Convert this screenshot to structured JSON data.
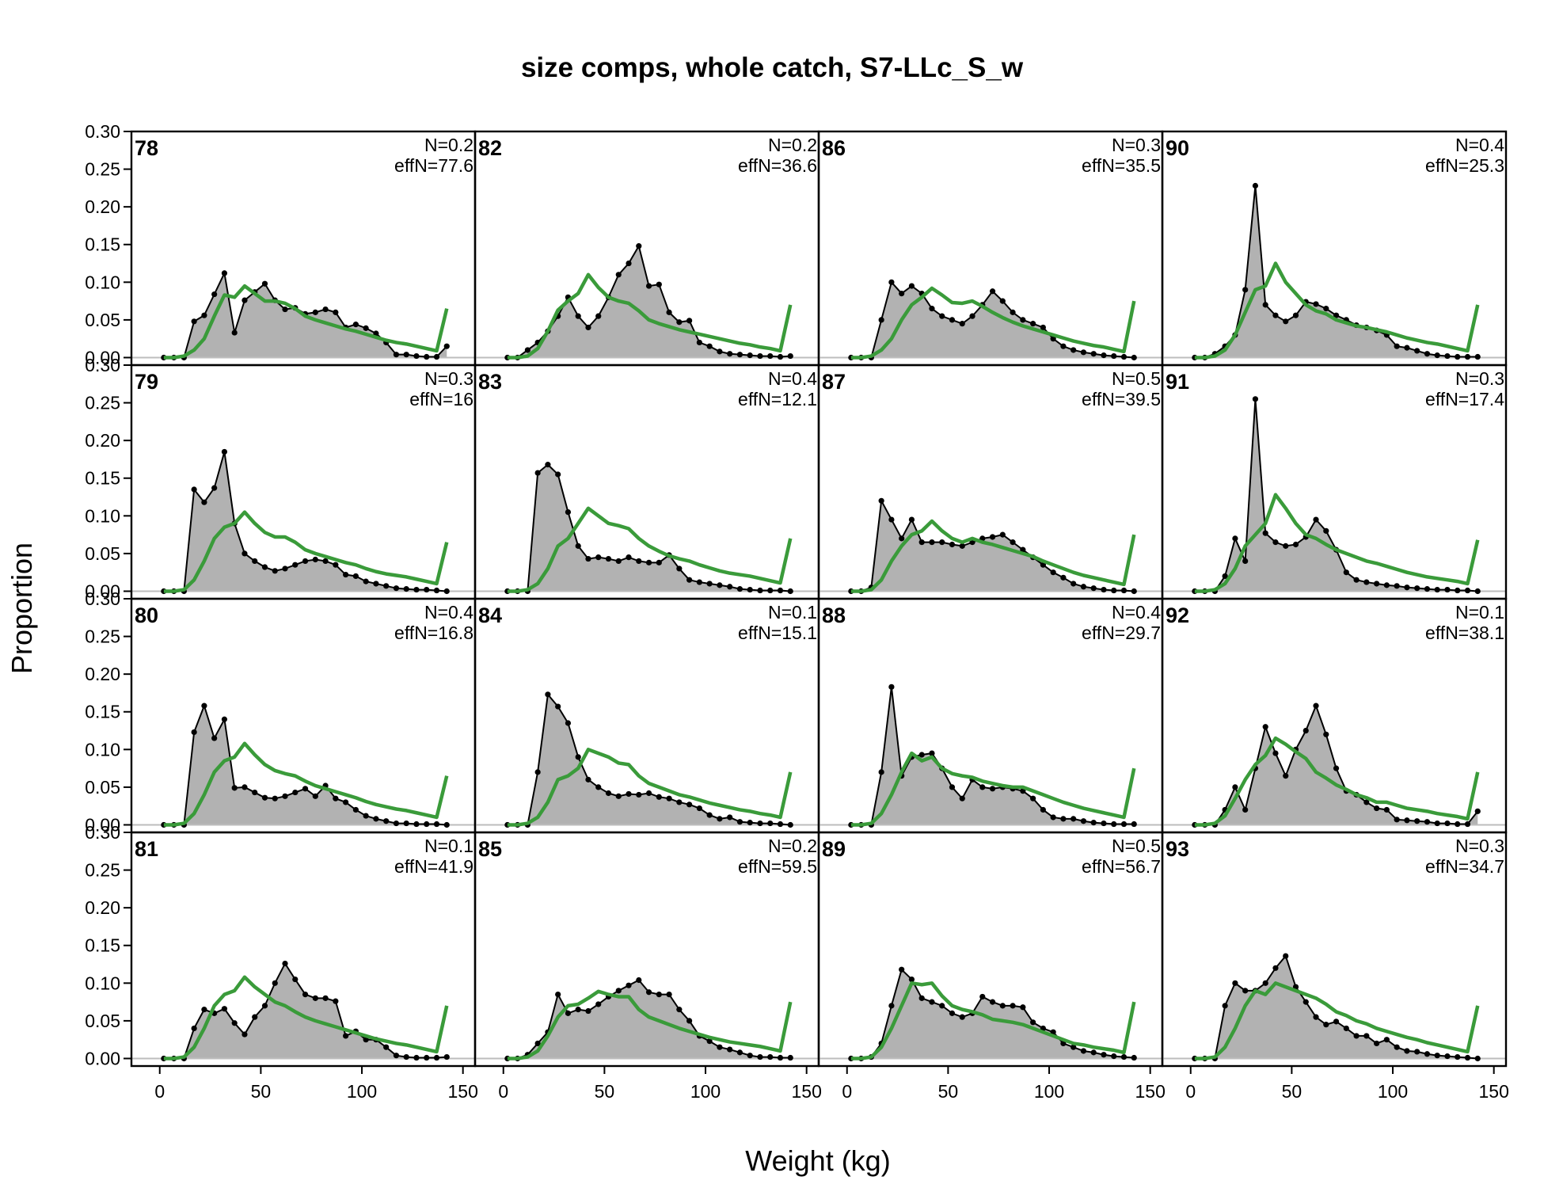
{
  "chart_data": {
    "type": "area",
    "title": "size comps, whole catch, S7-LLc_S_w",
    "xlabel": "Weight (kg)",
    "ylabel": "Proportion",
    "xlim": [
      -14,
      156
    ],
    "ylim": [
      -0.01,
      0.3
    ],
    "x_ticks": [
      0,
      50,
      100,
      150
    ],
    "y_ticks": [
      "0.00",
      "0.05",
      "0.10",
      "0.15",
      "0.20",
      "0.25",
      "0.30"
    ],
    "observed_color": "#000000",
    "observed_fill": "#b2b2b2",
    "expected_color": "#3a9b3a",
    "layout": "4 rows x 4 columns, filled down columns",
    "series_names": [
      "observed",
      "expected"
    ],
    "bins": [
      2,
      7,
      12,
      17,
      22,
      27,
      32,
      37,
      42,
      47,
      52,
      57,
      62,
      67,
      72,
      77,
      82,
      87,
      92,
      97,
      102,
      107,
      112,
      117,
      122,
      127,
      132,
      137,
      142
    ],
    "panels": [
      {
        "label": "78",
        "n": "N=0.2",
        "effn": "effN=77.6",
        "observed": [
          0,
          0,
          0,
          0.048,
          0.056,
          0.084,
          0.112,
          0.033,
          0.076,
          0.087,
          0.098,
          0.076,
          0.064,
          0.066,
          0.058,
          0.06,
          0.064,
          0.06,
          0.04,
          0.044,
          0.039,
          0.032,
          0.02,
          0.004,
          0.004,
          0.002,
          0.001,
          0.001,
          0.015
        ],
        "expected": [
          0,
          0,
          0.002,
          0.01,
          0.025,
          0.055,
          0.083,
          0.08,
          0.095,
          0.085,
          0.075,
          0.075,
          0.072,
          0.065,
          0.055,
          0.05,
          0.046,
          0.042,
          0.038,
          0.035,
          0.031,
          0.027,
          0.023,
          0.02,
          0.018,
          0.015,
          0.012,
          0.009,
          0.065
        ]
      },
      {
        "label": "79",
        "n": "N=0.3",
        "effn": "effN=16",
        "observed": [
          0,
          0,
          0,
          0.135,
          0.118,
          0.137,
          0.185,
          0.09,
          0.05,
          0.04,
          0.032,
          0.027,
          0.03,
          0.035,
          0.04,
          0.042,
          0.04,
          0.035,
          0.022,
          0.02,
          0.013,
          0.01,
          0.007,
          0.004,
          0.003,
          0.002,
          0.002,
          0.001,
          0
        ],
        "expected": [
          0,
          0,
          0.002,
          0.015,
          0.04,
          0.07,
          0.085,
          0.09,
          0.105,
          0.09,
          0.078,
          0.072,
          0.072,
          0.065,
          0.055,
          0.05,
          0.046,
          0.042,
          0.038,
          0.035,
          0.03,
          0.026,
          0.023,
          0.021,
          0.019,
          0.016,
          0.013,
          0.01,
          0.065
        ]
      },
      {
        "label": "80",
        "n": "N=0.4",
        "effn": "effN=16.8",
        "observed": [
          0,
          0,
          0,
          0.123,
          0.158,
          0.115,
          0.14,
          0.049,
          0.05,
          0.043,
          0.036,
          0.035,
          0.038,
          0.043,
          0.048,
          0.038,
          0.052,
          0.035,
          0.03,
          0.02,
          0.012,
          0.008,
          0.005,
          0.002,
          0.002,
          0.001,
          0.001,
          0.001,
          0
        ],
        "expected": [
          0,
          0,
          0.002,
          0.015,
          0.04,
          0.07,
          0.085,
          0.09,
          0.108,
          0.093,
          0.08,
          0.072,
          0.068,
          0.065,
          0.058,
          0.052,
          0.048,
          0.044,
          0.04,
          0.036,
          0.031,
          0.027,
          0.024,
          0.021,
          0.019,
          0.016,
          0.013,
          0.01,
          0.065
        ]
      },
      {
        "label": "81",
        "n": "N=0.1",
        "effn": "effN=41.9",
        "observed": [
          0,
          0,
          0,
          0.04,
          0.065,
          0.06,
          0.066,
          0.047,
          0.032,
          0.055,
          0.07,
          0.1,
          0.126,
          0.105,
          0.085,
          0.08,
          0.08,
          0.076,
          0.03,
          0.036,
          0.025,
          0.025,
          0.015,
          0.004,
          0.002,
          0.001,
          0.001,
          0.001,
          0.002
        ],
        "expected": [
          0,
          0,
          0.002,
          0.015,
          0.04,
          0.07,
          0.085,
          0.09,
          0.108,
          0.095,
          0.085,
          0.075,
          0.07,
          0.062,
          0.055,
          0.05,
          0.046,
          0.042,
          0.038,
          0.034,
          0.03,
          0.026,
          0.023,
          0.02,
          0.018,
          0.015,
          0.012,
          0.009,
          0.07
        ]
      },
      {
        "label": "82",
        "n": "N=0.2",
        "effn": "effN=36.6",
        "observed": [
          0,
          0,
          0.01,
          0.02,
          0.035,
          0.055,
          0.08,
          0.055,
          0.04,
          0.055,
          0.08,
          0.11,
          0.125,
          0.148,
          0.095,
          0.097,
          0.06,
          0.047,
          0.049,
          0.02,
          0.015,
          0.008,
          0.005,
          0.004,
          0.003,
          0.002,
          0.002,
          0.001,
          0.002
        ],
        "expected": [
          0,
          0,
          0.002,
          0.012,
          0.035,
          0.063,
          0.075,
          0.085,
          0.11,
          0.093,
          0.08,
          0.075,
          0.072,
          0.062,
          0.05,
          0.045,
          0.041,
          0.037,
          0.034,
          0.031,
          0.028,
          0.025,
          0.022,
          0.019,
          0.017,
          0.014,
          0.012,
          0.009,
          0.07
        ]
      },
      {
        "label": "83",
        "n": "N=0.4",
        "effn": "effN=12.1",
        "observed": [
          0,
          0,
          0,
          0.157,
          0.168,
          0.155,
          0.105,
          0.06,
          0.043,
          0.045,
          0.043,
          0.04,
          0.045,
          0.04,
          0.038,
          0.038,
          0.048,
          0.03,
          0.015,
          0.012,
          0.01,
          0.008,
          0.006,
          0.003,
          0.002,
          0.001,
          0.001,
          0.001,
          0
        ],
        "expected": [
          0,
          0,
          0.002,
          0.01,
          0.03,
          0.06,
          0.07,
          0.09,
          0.11,
          0.1,
          0.09,
          0.087,
          0.083,
          0.07,
          0.06,
          0.053,
          0.047,
          0.043,
          0.04,
          0.035,
          0.031,
          0.027,
          0.024,
          0.022,
          0.02,
          0.017,
          0.014,
          0.011,
          0.07
        ]
      },
      {
        "label": "84",
        "n": "N=0.1",
        "effn": "effN=15.1",
        "observed": [
          0,
          0,
          0,
          0.07,
          0.173,
          0.157,
          0.135,
          0.09,
          0.06,
          0.05,
          0.042,
          0.038,
          0.041,
          0.04,
          0.042,
          0.037,
          0.035,
          0.03,
          0.027,
          0.022,
          0.013,
          0.008,
          0.01,
          0.004,
          0.003,
          0.002,
          0.002,
          0.001,
          0
        ],
        "expected": [
          0,
          0,
          0.002,
          0.01,
          0.03,
          0.06,
          0.065,
          0.075,
          0.1,
          0.095,
          0.09,
          0.082,
          0.08,
          0.065,
          0.055,
          0.05,
          0.045,
          0.04,
          0.037,
          0.033,
          0.029,
          0.026,
          0.023,
          0.02,
          0.018,
          0.015,
          0.013,
          0.01,
          0.07
        ]
      },
      {
        "label": "85",
        "n": "N=0.2",
        "effn": "effN=59.5",
        "observed": [
          0,
          0,
          0.005,
          0.02,
          0.035,
          0.085,
          0.06,
          0.065,
          0.063,
          0.072,
          0.082,
          0.09,
          0.097,
          0.104,
          0.088,
          0.085,
          0.085,
          0.065,
          0.05,
          0.03,
          0.023,
          0.015,
          0.012,
          0.008,
          0.004,
          0.002,
          0.002,
          0.001,
          0.001
        ],
        "expected": [
          0,
          0,
          0.002,
          0.01,
          0.03,
          0.055,
          0.07,
          0.072,
          0.08,
          0.089,
          0.085,
          0.082,
          0.082,
          0.065,
          0.055,
          0.05,
          0.045,
          0.04,
          0.036,
          0.032,
          0.028,
          0.025,
          0.022,
          0.02,
          0.018,
          0.016,
          0.013,
          0.01,
          0.075
        ]
      },
      {
        "label": "86",
        "n": "N=0.3",
        "effn": "effN=35.5",
        "observed": [
          0,
          0,
          0,
          0.05,
          0.1,
          0.085,
          0.095,
          0.085,
          0.065,
          0.055,
          0.05,
          0.045,
          0.055,
          0.07,
          0.088,
          0.075,
          0.06,
          0.05,
          0.045,
          0.04,
          0.025,
          0.015,
          0.01,
          0.007,
          0.005,
          0.003,
          0.002,
          0.001,
          0
        ],
        "expected": [
          0,
          0,
          0.002,
          0.01,
          0.025,
          0.05,
          0.07,
          0.08,
          0.092,
          0.083,
          0.073,
          0.072,
          0.075,
          0.068,
          0.06,
          0.053,
          0.047,
          0.042,
          0.038,
          0.034,
          0.03,
          0.026,
          0.022,
          0.019,
          0.016,
          0.014,
          0.011,
          0.008,
          0.075
        ]
      },
      {
        "label": "87",
        "n": "N=0.5",
        "effn": "effN=39.5",
        "observed": [
          0,
          0,
          0.005,
          0.12,
          0.095,
          0.07,
          0.095,
          0.065,
          0.065,
          0.065,
          0.062,
          0.06,
          0.065,
          0.07,
          0.072,
          0.075,
          0.065,
          0.055,
          0.045,
          0.035,
          0.025,
          0.018,
          0.01,
          0.006,
          0.004,
          0.002,
          0.001,
          0.001,
          0
        ],
        "expected": [
          0,
          0,
          0.002,
          0.015,
          0.04,
          0.06,
          0.075,
          0.08,
          0.093,
          0.08,
          0.07,
          0.065,
          0.07,
          0.065,
          0.062,
          0.058,
          0.054,
          0.05,
          0.046,
          0.04,
          0.035,
          0.03,
          0.025,
          0.021,
          0.018,
          0.015,
          0.012,
          0.009,
          0.075
        ]
      },
      {
        "label": "88",
        "n": "N=0.4",
        "effn": "effN=29.7",
        "observed": [
          0,
          0,
          0,
          0.07,
          0.183,
          0.065,
          0.09,
          0.093,
          0.095,
          0.075,
          0.05,
          0.035,
          0.06,
          0.05,
          0.048,
          0.05,
          0.048,
          0.045,
          0.035,
          0.02,
          0.01,
          0.008,
          0.008,
          0.005,
          0.003,
          0.002,
          0.001,
          0.001,
          0.001
        ],
        "expected": [
          0,
          0,
          0.002,
          0.015,
          0.04,
          0.07,
          0.095,
          0.085,
          0.09,
          0.075,
          0.068,
          0.065,
          0.063,
          0.058,
          0.055,
          0.052,
          0.05,
          0.05,
          0.045,
          0.04,
          0.035,
          0.03,
          0.026,
          0.022,
          0.019,
          0.016,
          0.013,
          0.01,
          0.075
        ]
      },
      {
        "label": "89",
        "n": "N=0.5",
        "effn": "effN=56.7",
        "observed": [
          0,
          0,
          0.002,
          0.02,
          0.07,
          0.118,
          0.105,
          0.08,
          0.075,
          0.07,
          0.06,
          0.055,
          0.06,
          0.082,
          0.075,
          0.07,
          0.07,
          0.068,
          0.048,
          0.04,
          0.035,
          0.02,
          0.015,
          0.01,
          0.008,
          0.005,
          0.003,
          0.002,
          0.001
        ],
        "expected": [
          0,
          0,
          0.002,
          0.015,
          0.04,
          0.07,
          0.1,
          0.098,
          0.1,
          0.083,
          0.07,
          0.065,
          0.062,
          0.058,
          0.052,
          0.05,
          0.048,
          0.045,
          0.04,
          0.035,
          0.03,
          0.025,
          0.02,
          0.018,
          0.015,
          0.013,
          0.011,
          0.008,
          0.075
        ]
      },
      {
        "label": "90",
        "n": "N=0.4",
        "effn": "effN=25.3",
        "observed": [
          0,
          0,
          0.005,
          0.015,
          0.03,
          0.09,
          0.228,
          0.07,
          0.056,
          0.048,
          0.056,
          0.074,
          0.071,
          0.065,
          0.056,
          0.05,
          0.043,
          0.04,
          0.036,
          0.03,
          0.015,
          0.013,
          0.009,
          0.005,
          0.003,
          0.002,
          0.001,
          0.001,
          0.001
        ],
        "expected": [
          0,
          0,
          0.002,
          0.01,
          0.03,
          0.06,
          0.09,
          0.095,
          0.125,
          0.1,
          0.085,
          0.07,
          0.062,
          0.058,
          0.05,
          0.046,
          0.042,
          0.04,
          0.037,
          0.034,
          0.03,
          0.026,
          0.023,
          0.02,
          0.018,
          0.015,
          0.012,
          0.009,
          0.07
        ]
      },
      {
        "label": "91",
        "n": "N=0.3",
        "effn": "effN=17.4",
        "observed": [
          0,
          0,
          0,
          0.02,
          0.07,
          0.04,
          0.255,
          0.077,
          0.065,
          0.06,
          0.062,
          0.072,
          0.095,
          0.08,
          0.055,
          0.025,
          0.015,
          0.012,
          0.01,
          0.008,
          0.007,
          0.005,
          0.004,
          0.003,
          0.002,
          0.002,
          0.001,
          0.001,
          0
        ],
        "expected": [
          0,
          0,
          0.002,
          0.01,
          0.03,
          0.06,
          0.075,
          0.09,
          0.128,
          0.11,
          0.09,
          0.075,
          0.07,
          0.062,
          0.055,
          0.05,
          0.045,
          0.04,
          0.037,
          0.033,
          0.029,
          0.025,
          0.022,
          0.019,
          0.017,
          0.015,
          0.013,
          0.01,
          0.068
        ]
      },
      {
        "label": "92",
        "n": "N=0.1",
        "effn": "effN=38.1",
        "observed": [
          0,
          0,
          0,
          0.02,
          0.05,
          0.02,
          0.075,
          0.13,
          0.095,
          0.065,
          0.1,
          0.125,
          0.158,
          0.12,
          0.075,
          0.045,
          0.04,
          0.03,
          0.022,
          0.02,
          0.007,
          0.006,
          0.005,
          0.004,
          0.002,
          0.002,
          0.001,
          0.001,
          0.018
        ],
        "expected": [
          0,
          0,
          0.002,
          0.012,
          0.035,
          0.06,
          0.08,
          0.092,
          0.115,
          0.107,
          0.097,
          0.088,
          0.07,
          0.062,
          0.053,
          0.047,
          0.04,
          0.036,
          0.03,
          0.03,
          0.026,
          0.022,
          0.02,
          0.018,
          0.015,
          0.013,
          0.011,
          0.008,
          0.07
        ]
      },
      {
        "label": "93",
        "n": "N=0.3",
        "effn": "effN=34.7",
        "observed": [
          0,
          0,
          0,
          0.07,
          0.1,
          0.09,
          0.09,
          0.1,
          0.12,
          0.136,
          0.095,
          0.075,
          0.055,
          0.045,
          0.049,
          0.04,
          0.03,
          0.03,
          0.02,
          0.025,
          0.015,
          0.01,
          0.009,
          0.006,
          0.004,
          0.003,
          0.002,
          0.001,
          0
        ],
        "expected": [
          0,
          0,
          0.002,
          0.015,
          0.04,
          0.07,
          0.09,
          0.085,
          0.1,
          0.095,
          0.09,
          0.085,
          0.08,
          0.072,
          0.062,
          0.057,
          0.05,
          0.046,
          0.04,
          0.036,
          0.032,
          0.028,
          0.025,
          0.021,
          0.018,
          0.015,
          0.012,
          0.009,
          0.07
        ]
      }
    ]
  }
}
